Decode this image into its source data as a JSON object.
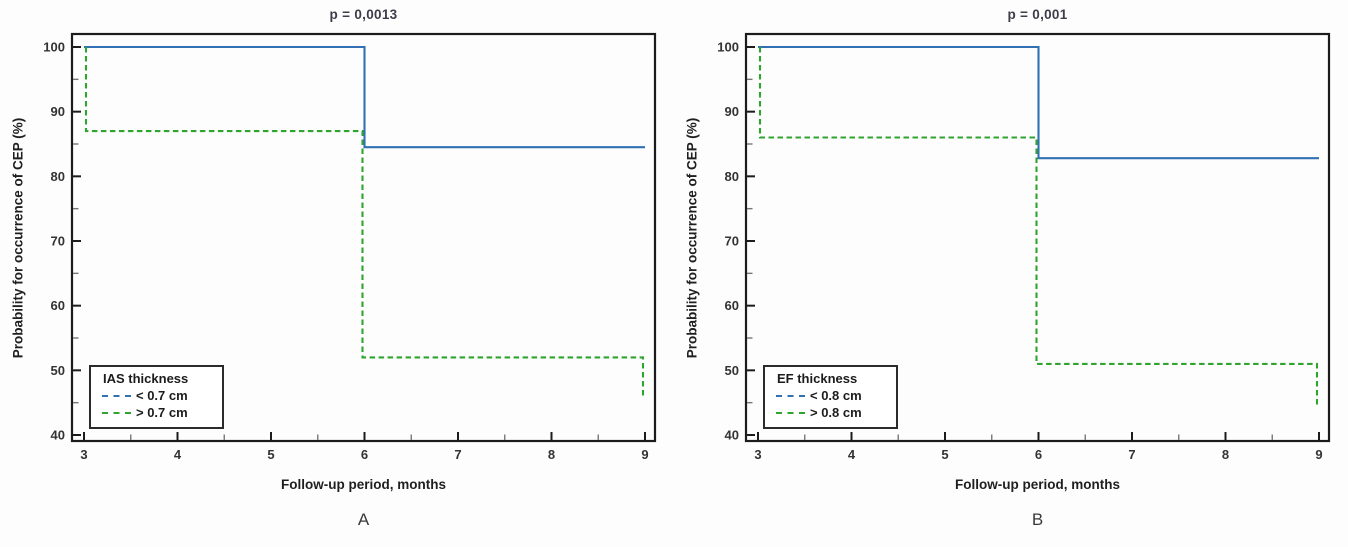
{
  "page": {
    "background": "#fdfdfd"
  },
  "chart_data": [
    {
      "type": "line",
      "subtype": "step-survival",
      "panel_label": "A",
      "title": "p = 0,0013",
      "xlabel": "Follow-up period, months",
      "ylabel": "Probability for occurrence of CEP (%)",
      "xlim": [
        3,
        9
      ],
      "ylim": [
        40,
        100
      ],
      "x_ticks": [
        3,
        4,
        5,
        6,
        7,
        8,
        9
      ],
      "y_ticks": [
        40,
        50,
        60,
        70,
        80,
        90,
        100
      ],
      "x_minor_step": 0.5,
      "y_minor_step": 5,
      "grid": false,
      "legend": {
        "title": "IAS thickness",
        "position": "bottom-left",
        "items": [
          {
            "label": "< 0.7 cm",
            "color": "#3171b3",
            "sample_style": "dashed"
          },
          {
            "label": "> 0.7 cm",
            "color": "#2fa42f",
            "sample_style": "dashed"
          }
        ]
      },
      "series": [
        {
          "name": "< 0.7 cm",
          "color": "#3171b3",
          "line_style": "solid",
          "points": [
            [
              3,
              100
            ],
            [
              6,
              100
            ],
            [
              6,
              84.5
            ],
            [
              9,
              84.5
            ]
          ]
        },
        {
          "name": "> 0.7 cm",
          "color": "#2fa42f",
          "line_style": "dashed",
          "points": [
            [
              3,
              100
            ],
            [
              3,
              87
            ],
            [
              6,
              87
            ],
            [
              6,
              52
            ],
            [
              9,
              52
            ],
            [
              9,
              46
            ]
          ]
        }
      ]
    },
    {
      "type": "line",
      "subtype": "step-survival",
      "panel_label": "B",
      "title": "p = 0,001",
      "xlabel": "Follow-up period, months",
      "ylabel": "Probability for occurrence of CEP (%)",
      "xlim": [
        3,
        9
      ],
      "ylim": [
        40,
        100
      ],
      "x_ticks": [
        3,
        4,
        5,
        6,
        7,
        8,
        9
      ],
      "y_ticks": [
        40,
        50,
        60,
        70,
        80,
        90,
        100
      ],
      "x_minor_step": 0.5,
      "y_minor_step": 5,
      "grid": false,
      "legend": {
        "title": "EF thickness",
        "position": "bottom-left",
        "items": [
          {
            "label": "< 0.8 cm",
            "color": "#3171b3",
            "sample_style": "dashed"
          },
          {
            "label": "> 0.8 cm",
            "color": "#2fa42f",
            "sample_style": "dashed"
          }
        ]
      },
      "series": [
        {
          "name": "< 0.8 cm",
          "color": "#3171b3",
          "line_style": "solid",
          "points": [
            [
              3,
              100
            ],
            [
              6,
              100
            ],
            [
              6,
              82.8
            ],
            [
              9,
              82.8
            ]
          ]
        },
        {
          "name": "> 0.8 cm",
          "color": "#2fa42f",
          "line_style": "dashed",
          "points": [
            [
              3,
              100
            ],
            [
              3,
              86
            ],
            [
              6,
              86
            ],
            [
              6,
              51
            ],
            [
              9,
              51
            ],
            [
              9,
              44.5
            ]
          ]
        }
      ]
    }
  ],
  "colors": {
    "series_blue": "#3171b3",
    "series_green": "#2fa42f",
    "axis": "#1c1c1c",
    "minor_tick": "#777777",
    "text": "#333333"
  }
}
